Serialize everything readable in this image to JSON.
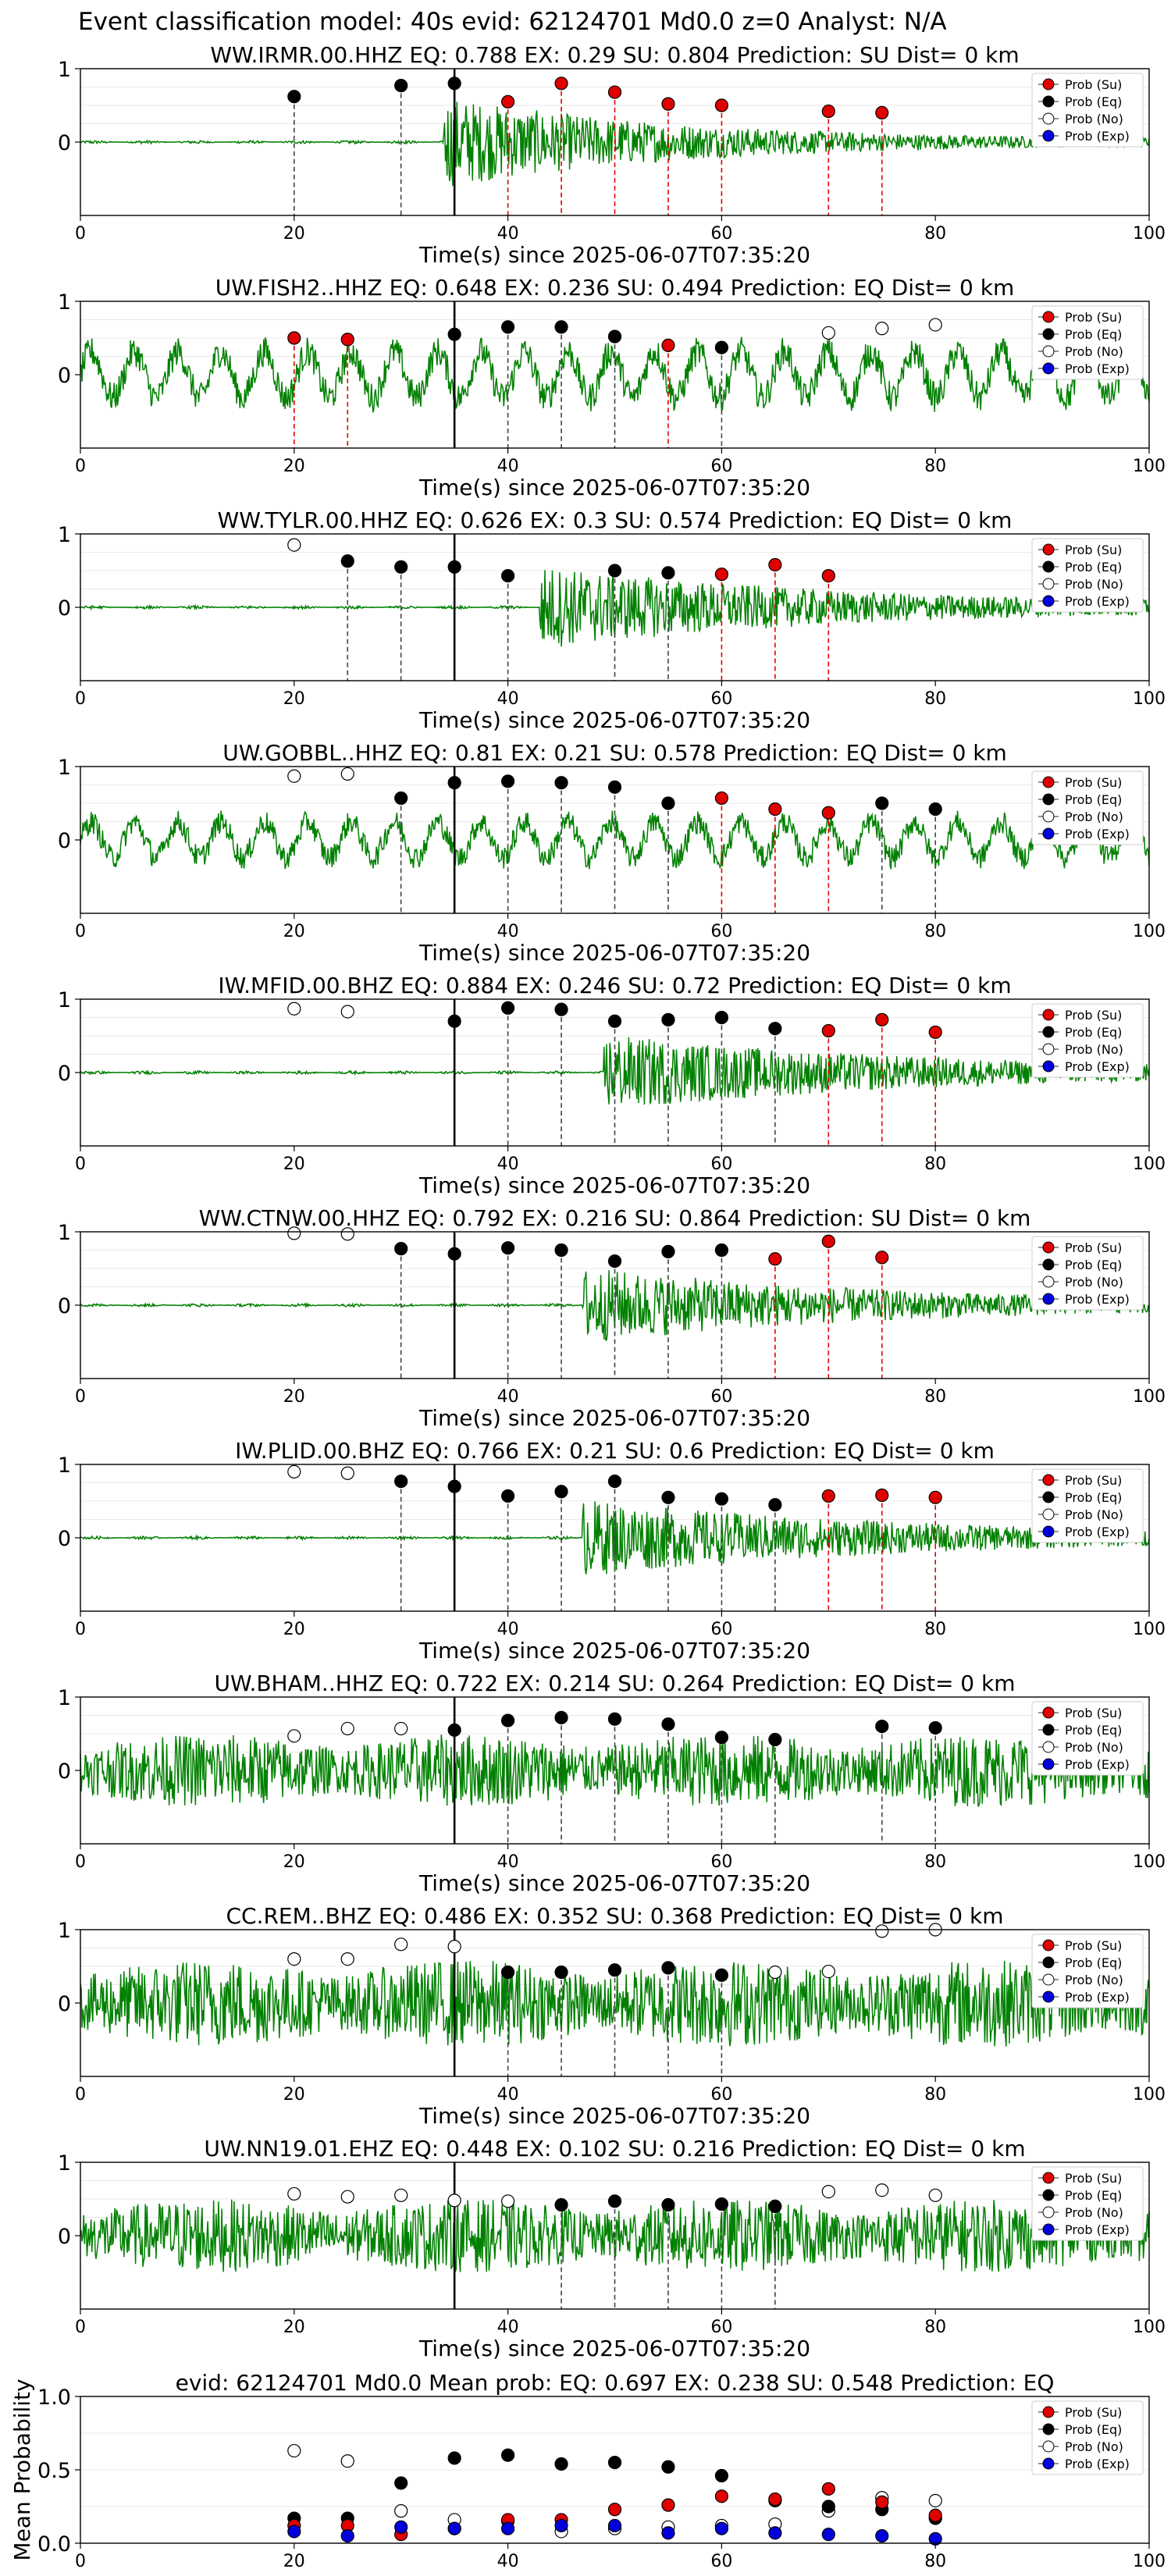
{
  "suptitle": "Event classification model: 40s evid: 62124701 Md0.0 z=0 Analyst: N/A",
  "legend_entries": [
    {
      "label": "Prob (Su)",
      "color": "#e00000",
      "face": "filled"
    },
    {
      "label": "Prob (Eq)",
      "color": "#000000",
      "face": "filled"
    },
    {
      "label": "Prob (No)",
      "color": "#ffffff",
      "face": "hollow"
    },
    {
      "label": "Prob (Exp)",
      "color": "#0000dd",
      "face": "filled"
    }
  ],
  "colors": {
    "waveform": "#008000",
    "su": "#e00000",
    "eq": "#000000",
    "no": "#ffffff",
    "exp": "#0000dd",
    "origin_line": "#000000"
  },
  "chart_data": [
    {
      "type": "scatter",
      "title": "WW.IRMR.00.HHZ   EQ: 0.788  EX: 0.29  SU: 0.804   Prediction: SU    Dist= 0 km",
      "xlabel": "Time(s) since 2025-06-07T07:35:20",
      "xlim": [
        0,
        100
      ],
      "ylim": [
        -1,
        1
      ],
      "xticks": [
        0,
        20,
        40,
        60,
        80,
        100
      ],
      "yticks": [
        0,
        1
      ],
      "origin_time": 35,
      "waveform": {
        "style": "quiet_then_burst",
        "start": 34,
        "amp": 0.6,
        "decay": 22
      },
      "points": [
        [
          20,
          0.62,
          "eq"
        ],
        [
          30,
          0.77,
          "eq"
        ],
        [
          35,
          0.8,
          "eq"
        ],
        [
          40,
          0.55,
          "su"
        ],
        [
          45,
          0.8,
          "su"
        ],
        [
          50,
          0.68,
          "su"
        ],
        [
          55,
          0.52,
          "su"
        ],
        [
          60,
          0.5,
          "su"
        ],
        [
          70,
          0.42,
          "su"
        ],
        [
          75,
          0.4,
          "su"
        ]
      ]
    },
    {
      "type": "scatter",
      "title": "UW.FISH2..HHZ   EQ: 0.648  EX: 0.236  SU: 0.494   Prediction: EQ    Dist= 0 km",
      "xlabel": "Time(s) since 2025-06-07T07:35:20",
      "xlim": [
        0,
        100
      ],
      "ylim": [
        -1,
        1
      ],
      "xticks": [
        0,
        20,
        40,
        60,
        80,
        100
      ],
      "yticks": [
        0,
        1
      ],
      "origin_time": 35,
      "waveform": {
        "style": "noisy_oscillation",
        "amp": 0.45
      },
      "points": [
        [
          20,
          0.5,
          "su"
        ],
        [
          25,
          0.48,
          "su"
        ],
        [
          35,
          0.55,
          "eq"
        ],
        [
          40,
          0.65,
          "eq"
        ],
        [
          45,
          0.65,
          "eq"
        ],
        [
          50,
          0.52,
          "eq"
        ],
        [
          55,
          0.4,
          "su"
        ],
        [
          60,
          0.37,
          "eq"
        ],
        [
          70,
          0.57,
          "no"
        ],
        [
          75,
          0.63,
          "no"
        ],
        [
          80,
          0.68,
          "no"
        ]
      ]
    },
    {
      "type": "scatter",
      "title": "WW.TYLR.00.HHZ   EQ: 0.626  EX: 0.3  SU: 0.574   Prediction: EQ    Dist= 0 km",
      "xlabel": "Time(s) since 2025-06-07T07:35:20",
      "xlim": [
        0,
        100
      ],
      "ylim": [
        -1,
        1
      ],
      "xticks": [
        0,
        20,
        40,
        60,
        80,
        100
      ],
      "yticks": [
        0,
        1
      ],
      "origin_time": 35,
      "waveform": {
        "style": "quiet_then_burst",
        "start": 43,
        "amp": 0.55,
        "decay": 28
      },
      "points": [
        [
          20,
          0.85,
          "no"
        ],
        [
          25,
          0.63,
          "eq"
        ],
        [
          30,
          0.55,
          "eq"
        ],
        [
          35,
          0.55,
          "eq"
        ],
        [
          40,
          0.43,
          "eq"
        ],
        [
          50,
          0.5,
          "eq"
        ],
        [
          55,
          0.47,
          "eq"
        ],
        [
          60,
          0.45,
          "su"
        ],
        [
          65,
          0.58,
          "su"
        ],
        [
          70,
          0.43,
          "su"
        ]
      ]
    },
    {
      "type": "scatter",
      "title": "UW.GOBBL..HHZ   EQ: 0.81  EX: 0.21  SU: 0.578   Prediction: EQ    Dist= 0 km",
      "xlabel": "Time(s) since 2025-06-07T07:35:20",
      "xlim": [
        0,
        100
      ],
      "ylim": [
        -1,
        1
      ],
      "xticks": [
        0,
        20,
        40,
        60,
        80,
        100
      ],
      "yticks": [
        0,
        1
      ],
      "origin_time": 35,
      "waveform": {
        "style": "noisy_oscillation",
        "amp": 0.35
      },
      "points": [
        [
          20,
          0.87,
          "no"
        ],
        [
          25,
          0.9,
          "no"
        ],
        [
          30,
          0.57,
          "eq"
        ],
        [
          35,
          0.78,
          "eq"
        ],
        [
          40,
          0.8,
          "eq"
        ],
        [
          45,
          0.78,
          "eq"
        ],
        [
          50,
          0.72,
          "eq"
        ],
        [
          55,
          0.5,
          "eq"
        ],
        [
          60,
          0.57,
          "su"
        ],
        [
          65,
          0.42,
          "su"
        ],
        [
          70,
          0.37,
          "su"
        ],
        [
          75,
          0.5,
          "eq"
        ],
        [
          80,
          0.42,
          "eq"
        ]
      ]
    },
    {
      "type": "scatter",
      "title": "IW.MFID.00.BHZ   EQ: 0.884  EX: 0.246  SU: 0.72   Prediction: EQ    Dist= 0 km",
      "xlabel": "Time(s) since 2025-06-07T07:35:20",
      "xlim": [
        0,
        100
      ],
      "ylim": [
        -1,
        1
      ],
      "xticks": [
        0,
        20,
        40,
        60,
        80,
        100
      ],
      "yticks": [
        0,
        1
      ],
      "origin_time": 35,
      "waveform": {
        "style": "quiet_then_burst",
        "start": 49,
        "amp": 0.5,
        "decay": 30
      },
      "points": [
        [
          20,
          0.87,
          "no"
        ],
        [
          25,
          0.83,
          "no"
        ],
        [
          35,
          0.7,
          "eq"
        ],
        [
          40,
          0.88,
          "eq"
        ],
        [
          45,
          0.86,
          "eq"
        ],
        [
          50,
          0.7,
          "eq"
        ],
        [
          55,
          0.72,
          "eq"
        ],
        [
          60,
          0.75,
          "eq"
        ],
        [
          65,
          0.6,
          "eq"
        ],
        [
          70,
          0.57,
          "su"
        ],
        [
          75,
          0.72,
          "su"
        ],
        [
          80,
          0.55,
          "su"
        ]
      ]
    },
    {
      "type": "scatter",
      "title": "WW.CTNW.00.HHZ   EQ: 0.792  EX: 0.216  SU: 0.864   Prediction: SU    Dist= 0 km",
      "xlabel": "Time(s) since 2025-06-07T07:35:20",
      "xlim": [
        0,
        100
      ],
      "ylim": [
        -1,
        1
      ],
      "xticks": [
        0,
        20,
        40,
        60,
        80,
        100
      ],
      "yticks": [
        0,
        1
      ],
      "origin_time": 35,
      "waveform": {
        "style": "quiet_then_burst",
        "start": 47,
        "amp": 0.5,
        "decay": 28
      },
      "points": [
        [
          20,
          0.98,
          "no"
        ],
        [
          25,
          0.97,
          "no"
        ],
        [
          30,
          0.77,
          "eq"
        ],
        [
          35,
          0.7,
          "eq"
        ],
        [
          40,
          0.78,
          "eq"
        ],
        [
          45,
          0.75,
          "eq"
        ],
        [
          50,
          0.6,
          "eq"
        ],
        [
          55,
          0.73,
          "eq"
        ],
        [
          60,
          0.75,
          "eq"
        ],
        [
          65,
          0.63,
          "su"
        ],
        [
          70,
          0.87,
          "su"
        ],
        [
          75,
          0.65,
          "su"
        ]
      ]
    },
    {
      "type": "scatter",
      "title": "IW.PLID.00.BHZ   EQ: 0.766  EX: 0.21  SU: 0.6   Prediction: EQ    Dist= 0 km",
      "xlabel": "Time(s) since 2025-06-07T07:35:20",
      "xlim": [
        0,
        100
      ],
      "ylim": [
        -1,
        1
      ],
      "xticks": [
        0,
        20,
        40,
        60,
        80,
        100
      ],
      "yticks": [
        0,
        1
      ],
      "origin_time": 35,
      "waveform": {
        "style": "quiet_then_burst",
        "start": 47,
        "amp": 0.5,
        "decay": 30
      },
      "points": [
        [
          20,
          0.9,
          "no"
        ],
        [
          25,
          0.88,
          "no"
        ],
        [
          30,
          0.77,
          "eq"
        ],
        [
          35,
          0.7,
          "eq"
        ],
        [
          40,
          0.57,
          "eq"
        ],
        [
          45,
          0.63,
          "eq"
        ],
        [
          50,
          0.77,
          "eq"
        ],
        [
          55,
          0.55,
          "eq"
        ],
        [
          60,
          0.53,
          "eq"
        ],
        [
          65,
          0.45,
          "eq"
        ],
        [
          70,
          0.57,
          "su"
        ],
        [
          75,
          0.58,
          "su"
        ],
        [
          80,
          0.55,
          "su"
        ]
      ]
    },
    {
      "type": "scatter",
      "title": "UW.BHAM..HHZ   EQ: 0.722  EX: 0.214  SU: 0.264   Prediction: EQ    Dist= 0 km",
      "xlabel": "Time(s) since 2025-06-07T07:35:20",
      "xlim": [
        0,
        100
      ],
      "ylim": [
        -1,
        1
      ],
      "xticks": [
        0,
        20,
        40,
        60,
        80,
        100
      ],
      "yticks": [
        0,
        1
      ],
      "origin_time": 35,
      "waveform": {
        "style": "broadband_noise",
        "amp": 0.5
      },
      "points": [
        [
          20,
          0.47,
          "no"
        ],
        [
          25,
          0.57,
          "no"
        ],
        [
          30,
          0.57,
          "no"
        ],
        [
          35,
          0.55,
          "eq"
        ],
        [
          40,
          0.68,
          "eq"
        ],
        [
          45,
          0.72,
          "eq"
        ],
        [
          50,
          0.7,
          "eq"
        ],
        [
          55,
          0.63,
          "eq"
        ],
        [
          60,
          0.45,
          "eq"
        ],
        [
          65,
          0.42,
          "eq"
        ],
        [
          75,
          0.6,
          "eq"
        ],
        [
          80,
          0.58,
          "eq"
        ]
      ]
    },
    {
      "type": "scatter",
      "title": "CC.REM..BHZ   EQ: 0.486  EX: 0.352  SU: 0.368   Prediction: EQ    Dist= 0 km",
      "xlabel": "Time(s) since 2025-06-07T07:35:20",
      "xlim": [
        0,
        100
      ],
      "ylim": [
        -1,
        1
      ],
      "xticks": [
        0,
        20,
        40,
        60,
        80,
        100
      ],
      "yticks": [
        0,
        1
      ],
      "origin_time": 35,
      "waveform": {
        "style": "broadband_noise",
        "amp": 0.6
      },
      "points": [
        [
          20,
          0.6,
          "no"
        ],
        [
          25,
          0.6,
          "no"
        ],
        [
          30,
          0.8,
          "no"
        ],
        [
          35,
          0.77,
          "no"
        ],
        [
          40,
          0.42,
          "eq"
        ],
        [
          45,
          0.42,
          "eq"
        ],
        [
          50,
          0.45,
          "eq"
        ],
        [
          55,
          0.48,
          "eq"
        ],
        [
          60,
          0.38,
          "eq"
        ],
        [
          65,
          0.42,
          "no"
        ],
        [
          70,
          0.43,
          "no"
        ],
        [
          75,
          0.98,
          "no"
        ],
        [
          80,
          1.0,
          "no"
        ]
      ]
    },
    {
      "type": "scatter",
      "title": "UW.NN19.01.EHZ   EQ: 0.448  EX: 0.102  SU: 0.216   Prediction: EQ    Dist= 0 km",
      "xlabel": "Time(s) since 2025-06-07T07:35:20",
      "xlim": [
        0,
        100
      ],
      "ylim": [
        -1,
        1
      ],
      "xticks": [
        0,
        20,
        40,
        60,
        80,
        100
      ],
      "yticks": [
        0,
        1
      ],
      "origin_time": 35,
      "waveform": {
        "style": "broadband_noise",
        "amp": 0.5
      },
      "points": [
        [
          20,
          0.57,
          "no"
        ],
        [
          25,
          0.53,
          "no"
        ],
        [
          30,
          0.55,
          "no"
        ],
        [
          35,
          0.48,
          "no"
        ],
        [
          40,
          0.47,
          "no"
        ],
        [
          45,
          0.42,
          "eq"
        ],
        [
          50,
          0.47,
          "eq"
        ],
        [
          55,
          0.42,
          "eq"
        ],
        [
          60,
          0.43,
          "eq"
        ],
        [
          65,
          0.4,
          "eq"
        ],
        [
          70,
          0.6,
          "no"
        ],
        [
          75,
          0.62,
          "no"
        ],
        [
          80,
          0.55,
          "no"
        ]
      ]
    },
    {
      "type": "scatter",
      "title": "evid: 62124701  Md0.0   Mean prob:   EQ: 0.697  EX: 0.238  SU: 0.548   Prediction: EQ",
      "ylabel": "Mean Probability",
      "xlim": [
        0,
        100
      ],
      "ylim": [
        0,
        1
      ],
      "xticks": [
        0,
        20,
        40,
        60,
        80,
        100
      ],
      "yticks": [
        0.0,
        0.5,
        1.0
      ],
      "ytick_labels": [
        "0.0",
        "0.5",
        "1.0"
      ],
      "series": [
        {
          "class": "no",
          "x": [
            20,
            25,
            30,
            35,
            40,
            45,
            50,
            55,
            60,
            65,
            70,
            75,
            80
          ],
          "y": [
            0.63,
            0.56,
            0.22,
            0.16,
            0.15,
            0.08,
            0.1,
            0.11,
            0.12,
            0.13,
            0.22,
            0.31,
            0.29
          ]
        },
        {
          "class": "eq",
          "x": [
            20,
            25,
            30,
            35,
            40,
            45,
            50,
            55,
            60,
            65,
            70,
            75,
            80
          ],
          "y": [
            0.17,
            0.17,
            0.41,
            0.58,
            0.6,
            0.54,
            0.55,
            0.52,
            0.46,
            0.29,
            0.25,
            0.23,
            0.17
          ]
        },
        {
          "class": "su",
          "x": [
            20,
            25,
            30,
            35,
            40,
            45,
            50,
            55,
            60,
            65,
            70,
            75,
            80
          ],
          "y": [
            0.12,
            0.12,
            0.06,
            0.1,
            0.16,
            0.16,
            0.23,
            0.26,
            0.32,
            0.3,
            0.37,
            0.28,
            0.19
          ]
        },
        {
          "class": "exp",
          "x": [
            20,
            25,
            30,
            35,
            40,
            45,
            50,
            55,
            60,
            65,
            70,
            75,
            80
          ],
          "y": [
            0.08,
            0.05,
            0.11,
            0.1,
            0.1,
            0.12,
            0.12,
            0.07,
            0.1,
            0.07,
            0.06,
            0.05,
            0.03
          ]
        }
      ]
    }
  ]
}
